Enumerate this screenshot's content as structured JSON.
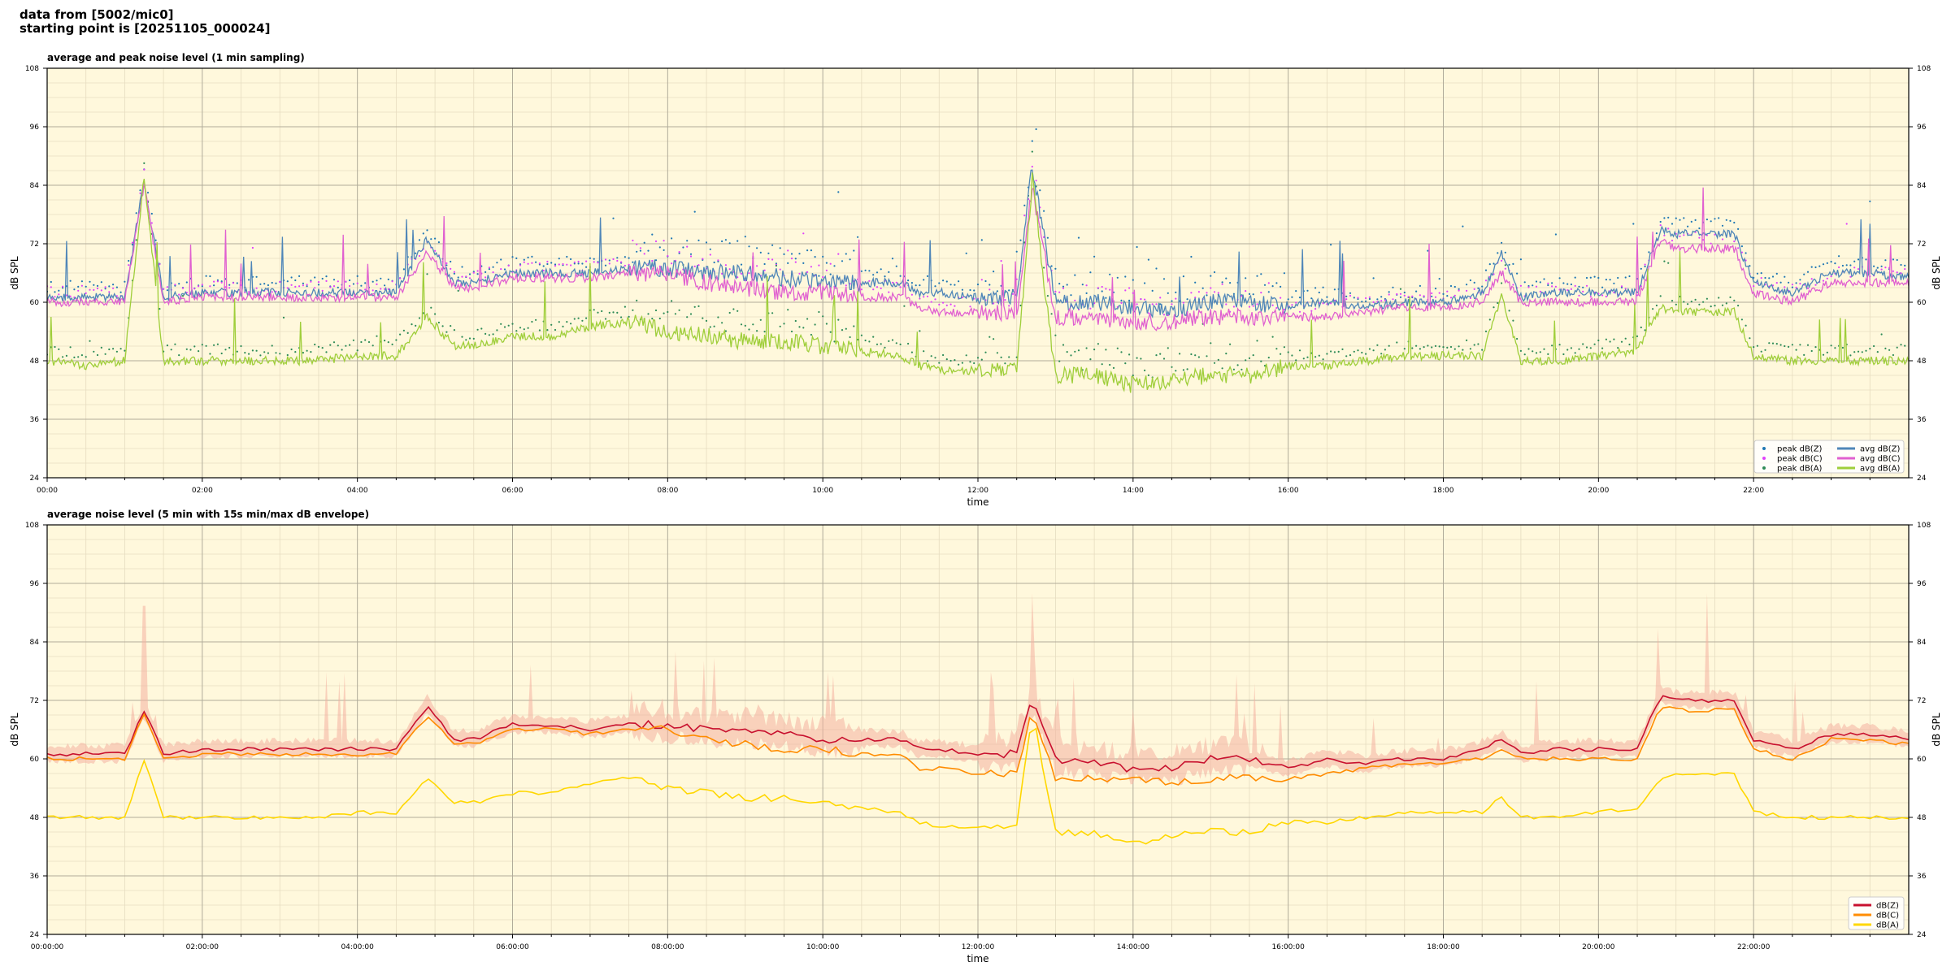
{
  "header": {
    "line1": "data from [5002/mic0]",
    "line2": "starting point is [20251105_000024]"
  },
  "chart_data": [
    {
      "type": "line",
      "title": "average and peak noise level (1 min sampling)",
      "xlabel": "time",
      "ylabel": "dB SPL",
      "xlim": [
        0,
        24
      ],
      "ylim": [
        24,
        108
      ],
      "x_tick_labels": [
        "00:00",
        "02:00",
        "04:00",
        "06:00",
        "08:00",
        "10:00",
        "12:00",
        "14:00",
        "16:00",
        "18:00",
        "20:00",
        "22:00"
      ],
      "y_ticks": [
        24,
        36,
        48,
        60,
        72,
        84,
        96,
        108
      ],
      "grid": true,
      "legend": "bottom-right",
      "x_hours": [
        0,
        0.5,
        1,
        1.25,
        1.5,
        2,
        2.5,
        3,
        3.5,
        4,
        4.5,
        4.9,
        5.25,
        5.5,
        6,
        6.5,
        7,
        7.5,
        8,
        8.5,
        9,
        9.5,
        10,
        10.5,
        11,
        11.25,
        11.5,
        12,
        12.5,
        12.7,
        13,
        13.5,
        14,
        14.5,
        15,
        15.5,
        16,
        16.5,
        17,
        17.5,
        18,
        18.5,
        18.75,
        19,
        19.5,
        20,
        20.5,
        20.8,
        21,
        21.5,
        21.75,
        22,
        22.5,
        23,
        23.5,
        24
      ],
      "series": [
        {
          "name": "avg dB(Z)",
          "color": "#4f86b8",
          "values": [
            61,
            61,
            61,
            85,
            61,
            62,
            62,
            62,
            62,
            62,
            62,
            73,
            64,
            64,
            66,
            66,
            66,
            67,
            67,
            66,
            66,
            65,
            64,
            64,
            64,
            62,
            62,
            61,
            61,
            88,
            60,
            60,
            59,
            58,
            60,
            60,
            59,
            60,
            59,
            60,
            60,
            62,
            70,
            61,
            62,
            62,
            62,
            75,
            74,
            74,
            74,
            64,
            62,
            66,
            66,
            65
          ]
        },
        {
          "name": "avg dB(C)",
          "color": "#e060d0",
          "values": [
            60,
            60,
            60,
            84,
            60,
            61,
            61,
            61,
            61,
            61,
            61,
            70,
            63,
            63,
            65,
            65,
            65,
            66,
            66,
            64,
            63,
            62,
            62,
            61,
            61,
            59,
            58,
            58,
            58,
            84,
            57,
            57,
            56,
            56,
            57,
            57,
            57,
            57,
            58,
            59,
            59,
            60,
            66,
            60,
            60,
            60,
            60,
            73,
            71,
            71,
            71,
            62,
            60,
            64,
            64,
            64
          ]
        },
        {
          "name": "avg dB(A)",
          "color": "#9fce3a",
          "values": [
            48,
            47,
            48,
            86,
            48,
            48,
            48,
            48,
            48,
            49,
            49,
            57,
            51,
            51,
            53,
            53,
            55,
            56,
            54,
            53,
            52,
            52,
            51,
            50,
            49,
            47,
            46,
            46,
            46,
            85,
            45,
            45,
            43,
            44,
            45,
            45,
            47,
            47,
            48,
            49,
            49,
            49,
            61,
            48,
            48,
            49,
            50,
            59,
            58,
            58,
            58,
            49,
            48,
            48,
            48,
            48
          ]
        },
        {
          "name": "peak dB(Z)",
          "color": "#1f77b4",
          "marker": "dot",
          "values": []
        },
        {
          "name": "peak dB(C)",
          "color": "#e040fb",
          "marker": "dot",
          "values": []
        },
        {
          "name": "peak dB(A)",
          "color": "#2e8b57",
          "marker": "dot",
          "values": []
        }
      ]
    },
    {
      "type": "line",
      "title": "average noise level (5 min with 15s min/max dB envelope)",
      "xlabel": "time",
      "ylabel": "dB SPL",
      "xlim": [
        0,
        24
      ],
      "ylim": [
        24,
        108
      ],
      "x_tick_labels": [
        "00:00:00",
        "02:00:00",
        "04:00:00",
        "06:00:00",
        "08:00:00",
        "10:00:00",
        "12:00:00",
        "14:00:00",
        "16:00:00",
        "18:00:00",
        "20:00:00",
        "22:00:00"
      ],
      "y_ticks": [
        24,
        36,
        48,
        60,
        72,
        84,
        96,
        108
      ],
      "grid": true,
      "legend": "bottom-right",
      "x_hours": [
        0,
        0.5,
        1,
        1.25,
        1.5,
        2,
        2.5,
        3,
        3.5,
        4,
        4.5,
        4.9,
        5.25,
        5.5,
        6,
        6.5,
        7,
        7.5,
        8,
        8.5,
        9,
        9.5,
        10,
        10.5,
        11,
        11.25,
        11.5,
        12,
        12.5,
        12.7,
        13,
        13.5,
        14,
        14.5,
        15,
        15.5,
        16,
        16.5,
        17,
        17.5,
        18,
        18.5,
        18.75,
        19,
        19.5,
        20,
        20.5,
        20.8,
        21,
        21.5,
        21.75,
        22,
        22.5,
        23,
        23.5,
        24
      ],
      "series": [
        {
          "name": "dB(Z)",
          "color": "#c8102e",
          "values": [
            61,
            61,
            61,
            70,
            61,
            62,
            62,
            62,
            62,
            62,
            62,
            71,
            64,
            64,
            67,
            67,
            66,
            67,
            67,
            66,
            66,
            65,
            64,
            64,
            64,
            62,
            62,
            61,
            61,
            72,
            60,
            59,
            58,
            58,
            60,
            60,
            58,
            60,
            59,
            60,
            60,
            62,
            64,
            61,
            62,
            62,
            62,
            73,
            72,
            72,
            72,
            64,
            62,
            65,
            65,
            64
          ]
        },
        {
          "name": "dB(C)",
          "color": "#ff8c00",
          "values": [
            60,
            60,
            60,
            69,
            60,
            61,
            61,
            61,
            61,
            61,
            61,
            69,
            63,
            63,
            66,
            66,
            65,
            66,
            66,
            64,
            63,
            62,
            62,
            61,
            61,
            58,
            58,
            57,
            57,
            70,
            56,
            56,
            56,
            55,
            56,
            56,
            56,
            57,
            58,
            59,
            59,
            60,
            62,
            60,
            60,
            60,
            60,
            71,
            70,
            70,
            70,
            62,
            60,
            64,
            64,
            63
          ]
        },
        {
          "name": "dB(A)",
          "color": "#ffd700",
          "values": [
            48,
            48,
            48,
            60,
            48,
            48,
            48,
            48,
            48,
            49,
            49,
            56,
            51,
            51,
            53,
            53,
            55,
            56,
            54,
            53,
            52,
            52,
            51,
            50,
            49,
            47,
            46,
            46,
            46,
            70,
            45,
            45,
            43,
            44,
            45,
            45,
            47,
            47,
            48,
            49,
            49,
            49,
            52,
            48,
            48,
            49,
            50,
            56,
            57,
            57,
            57,
            49,
            48,
            48,
            48,
            48
          ]
        }
      ]
    }
  ]
}
